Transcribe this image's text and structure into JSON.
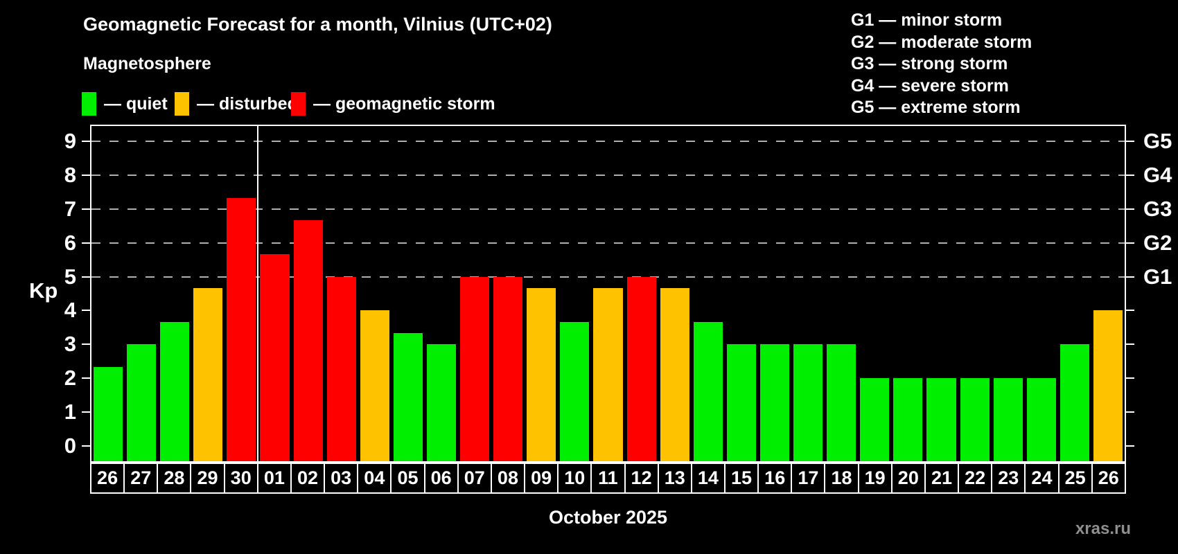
{
  "title": "Geomagnetic Forecast for a month, Vilnius (UTC+02)",
  "subtitle": "Magnetosphere",
  "legend": {
    "items": [
      {
        "key": "quiet",
        "label": "— quiet"
      },
      {
        "key": "disturbed",
        "label": "— disturbed"
      },
      {
        "key": "storm",
        "label": "— geomagnetic storm"
      }
    ]
  },
  "g_legend": [
    "G1 — minor storm",
    "G2 — moderate storm",
    "G3 — strong storm",
    "G4 — severe storm",
    "G5 — extreme storm"
  ],
  "watermark": "xras.ru",
  "chart_data": {
    "type": "bar",
    "title": "Geomagnetic Forecast for a month, Vilnius (UTC+02)",
    "xlabel": "October 2025",
    "ylabel": "Kp",
    "ylim": [
      -0.45,
      9.45
    ],
    "yticks": [
      0,
      1,
      2,
      3,
      4,
      5,
      6,
      7,
      8,
      9
    ],
    "grid_values": [
      5,
      6,
      7,
      8,
      9
    ],
    "grid_style": "dashed",
    "right_labels": [
      {
        "value": 9,
        "label": "G5"
      },
      {
        "value": 8,
        "label": "G4"
      },
      {
        "value": 7,
        "label": "G3"
      },
      {
        "value": 6,
        "label": "G2"
      },
      {
        "value": 5,
        "label": "G1"
      }
    ],
    "separator_after": 5,
    "categories": [
      "26",
      "27",
      "28",
      "29",
      "30",
      "01",
      "02",
      "03",
      "04",
      "05",
      "06",
      "07",
      "08",
      "09",
      "10",
      "11",
      "12",
      "13",
      "14",
      "15",
      "16",
      "17",
      "18",
      "19",
      "20",
      "21",
      "22",
      "23",
      "24",
      "25",
      "26"
    ],
    "values": [
      2.33,
      3,
      3.67,
      4.67,
      7.33,
      5.67,
      6.67,
      5,
      4,
      3.33,
      3,
      5,
      5,
      4.67,
      3.67,
      4.67,
      5,
      4.67,
      3.67,
      3,
      3,
      3,
      3,
      2,
      2,
      2,
      2,
      2,
      2,
      3,
      4
    ],
    "statuses": [
      "quiet",
      "quiet",
      "quiet",
      "disturbed",
      "storm",
      "storm",
      "storm",
      "storm",
      "disturbed",
      "quiet",
      "quiet",
      "storm",
      "storm",
      "disturbed",
      "quiet",
      "disturbed",
      "storm",
      "disturbed",
      "quiet",
      "quiet",
      "quiet",
      "quiet",
      "quiet",
      "quiet",
      "quiet",
      "quiet",
      "quiet",
      "quiet",
      "quiet",
      "quiet",
      "disturbed"
    ],
    "colors": {
      "quiet": "#00EE00",
      "disturbed": "#FFC200",
      "storm": "#FF0000",
      "axis": "#FFFFFF",
      "grid": "#B0B0B0",
      "background": "#000000",
      "watermark": "#8F8F8F"
    }
  }
}
